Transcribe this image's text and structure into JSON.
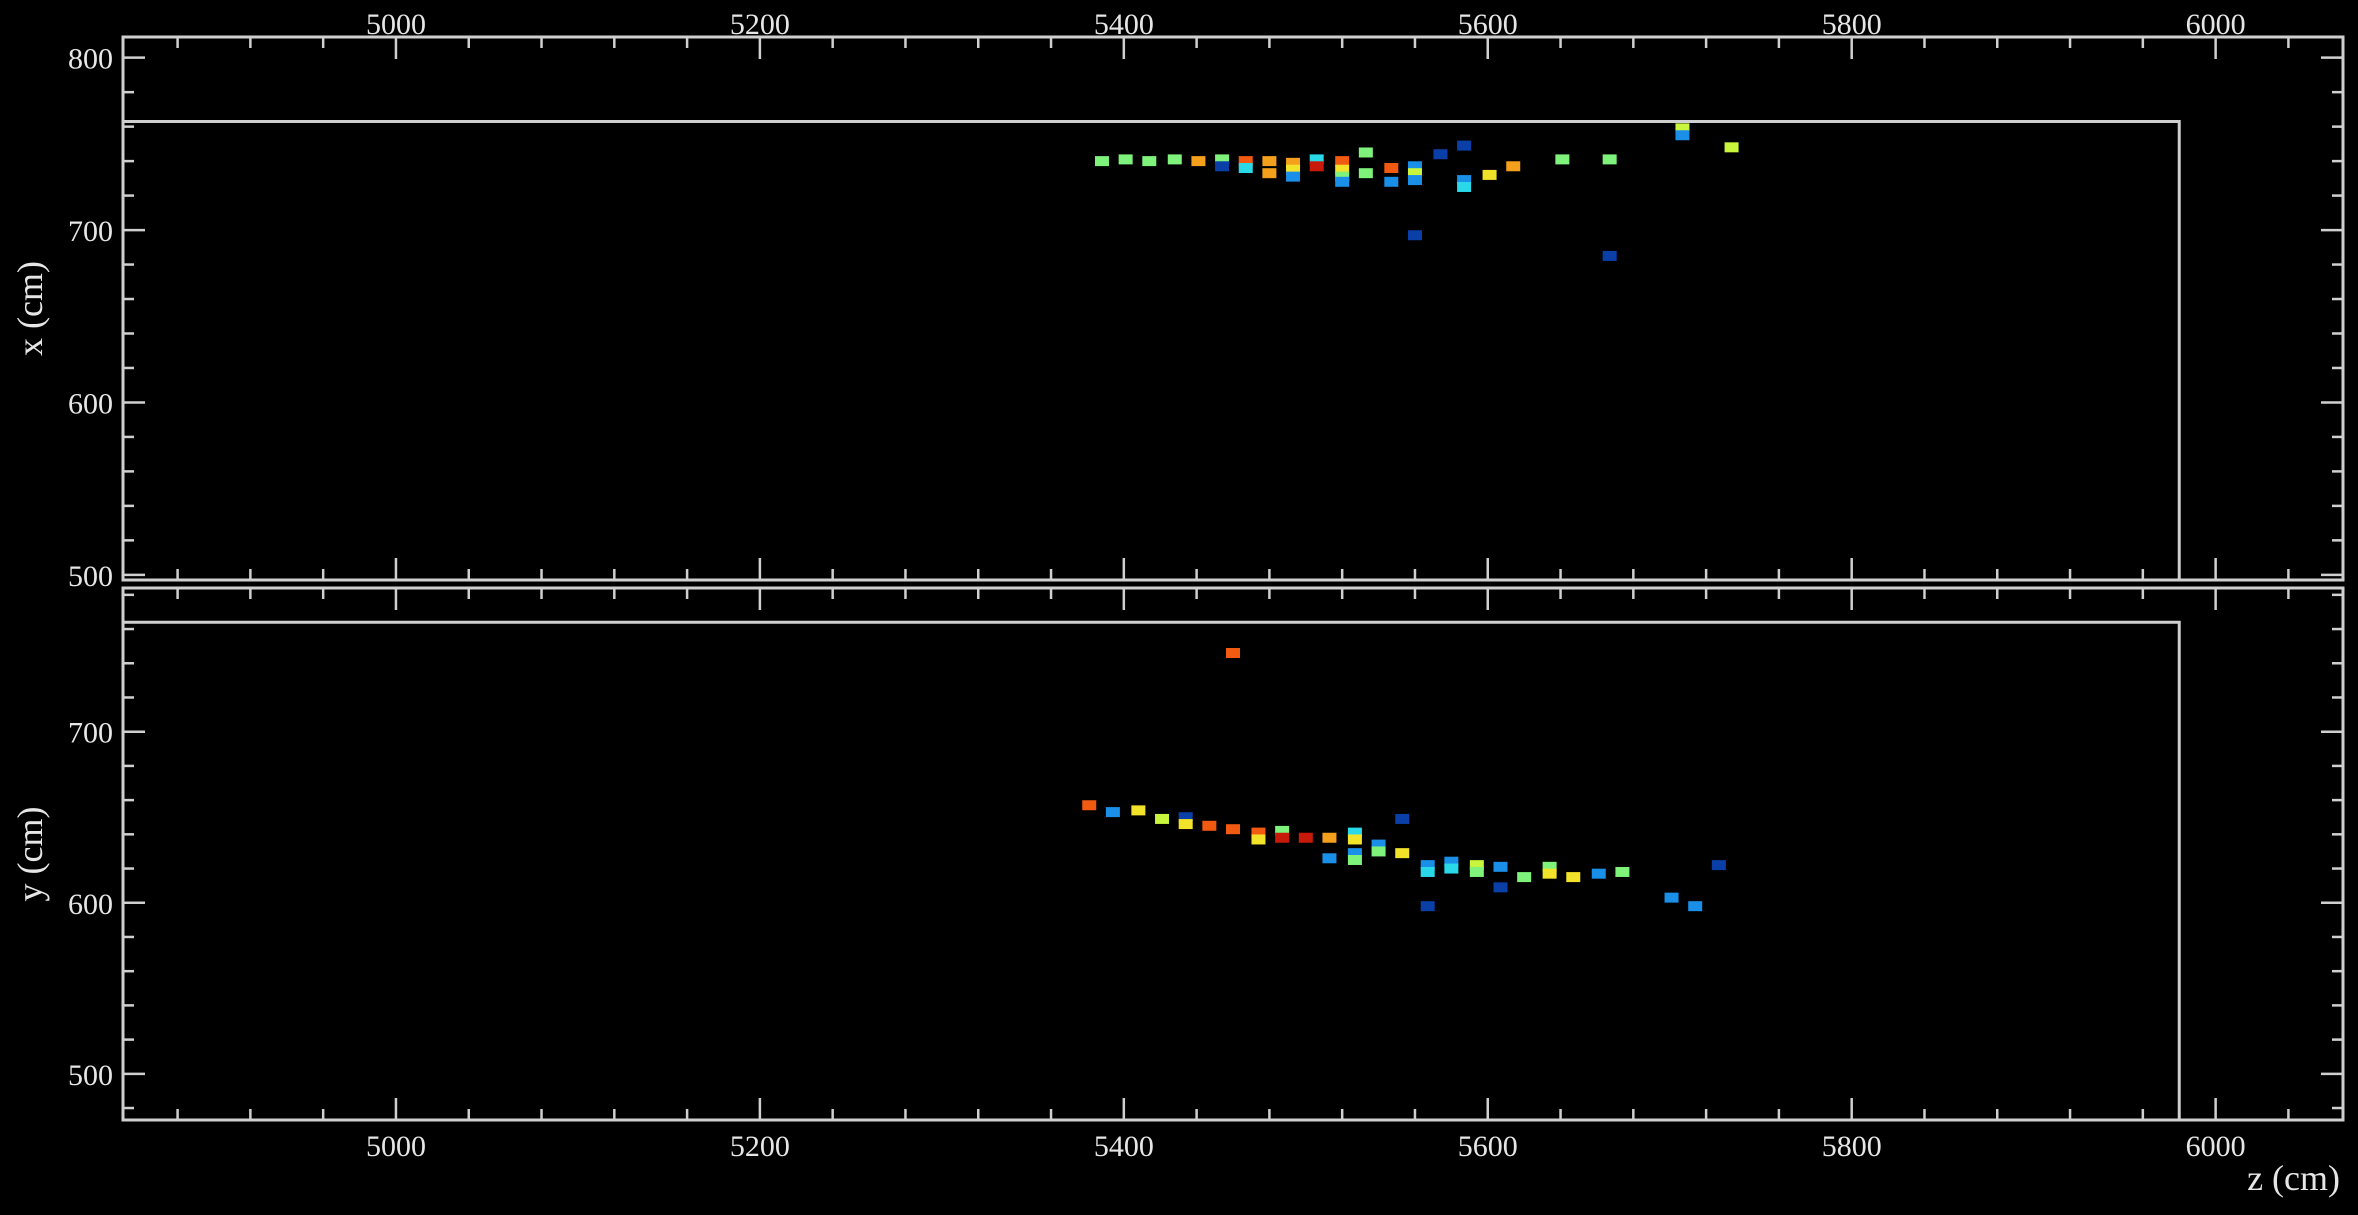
{
  "chart_data": [
    {
      "type": "scatter",
      "xlabel": "",
      "ylabel": "x (cm)",
      "xlim": [
        4850,
        6070
      ],
      "ylim": [
        497,
        812
      ],
      "x_ticks": [
        5000,
        5200,
        5400,
        5600,
        5800,
        6000
      ],
      "y_ticks": [
        500,
        600,
        700,
        800
      ],
      "x_tick_labels_position": "top",
      "grid": false,
      "detector_outline": {
        "z_max": 5980,
        "top": 763
      },
      "colors": {
        "1": "#0a3fa8",
        "2": "#1a8fe8",
        "3": "#2ad9e8",
        "4": "#7ef27a",
        "5": "#c9f53c",
        "6": "#f2e32a",
        "7": "#f5a01c",
        "8": "#f25a12",
        "9": "#c81a0a"
      },
      "points": [
        {
          "z": 5388,
          "v": 740,
          "c": 4
        },
        {
          "z": 5401,
          "v": 741,
          "c": 4
        },
        {
          "z": 5414,
          "v": 740,
          "c": 4
        },
        {
          "z": 5428,
          "v": 741,
          "c": 4
        },
        {
          "z": 5441,
          "v": 740,
          "c": 7
        },
        {
          "z": 5454,
          "v": 741,
          "c": 4
        },
        {
          "z": 5454,
          "v": 737,
          "c": 1
        },
        {
          "z": 5467,
          "v": 740,
          "c": 8
        },
        {
          "z": 5467,
          "v": 736,
          "c": 3
        },
        {
          "z": 5480,
          "v": 740,
          "c": 7
        },
        {
          "z": 5480,
          "v": 733,
          "c": 7
        },
        {
          "z": 5493,
          "v": 739,
          "c": 7
        },
        {
          "z": 5493,
          "v": 735,
          "c": 6
        },
        {
          "z": 5493,
          "v": 731,
          "c": 2
        },
        {
          "z": 5506,
          "v": 741,
          "c": 3
        },
        {
          "z": 5506,
          "v": 737,
          "c": 9
        },
        {
          "z": 5520,
          "v": 740,
          "c": 8
        },
        {
          "z": 5520,
          "v": 735,
          "c": 6
        },
        {
          "z": 5520,
          "v": 731,
          "c": 4
        },
        {
          "z": 5520,
          "v": 728,
          "c": 2
        },
        {
          "z": 5533,
          "v": 745,
          "c": 4
        },
        {
          "z": 5533,
          "v": 733,
          "c": 4
        },
        {
          "z": 5547,
          "v": 736,
          "c": 8
        },
        {
          "z": 5547,
          "v": 728,
          "c": 2
        },
        {
          "z": 5560,
          "v": 737,
          "c": 2
        },
        {
          "z": 5560,
          "v": 733,
          "c": 5
        },
        {
          "z": 5560,
          "v": 729,
          "c": 2
        },
        {
          "z": 5560,
          "v": 697,
          "c": 1
        },
        {
          "z": 5574,
          "v": 744,
          "c": 1
        },
        {
          "z": 5587,
          "v": 749,
          "c": 1
        },
        {
          "z": 5587,
          "v": 729,
          "c": 2
        },
        {
          "z": 5587,
          "v": 725,
          "c": 3
        },
        {
          "z": 5601,
          "v": 732,
          "c": 6
        },
        {
          "z": 5614,
          "v": 737,
          "c": 7
        },
        {
          "z": 5641,
          "v": 741,
          "c": 4
        },
        {
          "z": 5667,
          "v": 741,
          "c": 4
        },
        {
          "z": 5667,
          "v": 685,
          "c": 1
        },
        {
          "z": 5707,
          "v": 759,
          "c": 5
        },
        {
          "z": 5707,
          "v": 755,
          "c": 2
        },
        {
          "z": 5734,
          "v": 748,
          "c": 5
        }
      ]
    },
    {
      "type": "scatter",
      "xlabel": "z (cm)",
      "ylabel": "y (cm)",
      "xlim": [
        4850,
        6070
      ],
      "ylim": [
        473,
        784
      ],
      "x_ticks": [
        5000,
        5200,
        5400,
        5600,
        5800,
        6000
      ],
      "y_ticks": [
        500,
        600,
        700
      ],
      "x_tick_labels_position": "bottom",
      "grid": false,
      "detector_outline": {
        "z_max": 5980,
        "top": 764
      },
      "colors": {
        "1": "#0a3fa8",
        "2": "#1a8fe8",
        "3": "#2ad9e8",
        "4": "#7ef27a",
        "5": "#c9f53c",
        "6": "#f2e32a",
        "7": "#f5a01c",
        "8": "#f25a12",
        "9": "#c81a0a"
      },
      "points": [
        {
          "z": 5381,
          "v": 657,
          "c": 8
        },
        {
          "z": 5394,
          "v": 653,
          "c": 2
        },
        {
          "z": 5408,
          "v": 654,
          "c": 6
        },
        {
          "z": 5421,
          "v": 649,
          "c": 5
        },
        {
          "z": 5434,
          "v": 650,
          "c": 1
        },
        {
          "z": 5434,
          "v": 646,
          "c": 6
        },
        {
          "z": 5447,
          "v": 645,
          "c": 8
        },
        {
          "z": 5460,
          "v": 643,
          "c": 8
        },
        {
          "z": 5460,
          "v": 746,
          "c": 8
        },
        {
          "z": 5474,
          "v": 641,
          "c": 8
        },
        {
          "z": 5474,
          "v": 637,
          "c": 6
        },
        {
          "z": 5487,
          "v": 642,
          "c": 4
        },
        {
          "z": 5487,
          "v": 638,
          "c": 9
        },
        {
          "z": 5500,
          "v": 638,
          "c": 9
        },
        {
          "z": 5513,
          "v": 638,
          "c": 7
        },
        {
          "z": 5513,
          "v": 626,
          "c": 2
        },
        {
          "z": 5527,
          "v": 641,
          "c": 3
        },
        {
          "z": 5527,
          "v": 637,
          "c": 6
        },
        {
          "z": 5527,
          "v": 629,
          "c": 2
        },
        {
          "z": 5527,
          "v": 625,
          "c": 4
        },
        {
          "z": 5540,
          "v": 634,
          "c": 2
        },
        {
          "z": 5540,
          "v": 630,
          "c": 4
        },
        {
          "z": 5553,
          "v": 649,
          "c": 1
        },
        {
          "z": 5553,
          "v": 629,
          "c": 6
        },
        {
          "z": 5567,
          "v": 622,
          "c": 2
        },
        {
          "z": 5567,
          "v": 618,
          "c": 3
        },
        {
          "z": 5567,
          "v": 598,
          "c": 1
        },
        {
          "z": 5580,
          "v": 624,
          "c": 2
        },
        {
          "z": 5580,
          "v": 620,
          "c": 3
        },
        {
          "z": 5594,
          "v": 622,
          "c": 5
        },
        {
          "z": 5594,
          "v": 618,
          "c": 4
        },
        {
          "z": 5607,
          "v": 621,
          "c": 2
        },
        {
          "z": 5607,
          "v": 609,
          "c": 1
        },
        {
          "z": 5620,
          "v": 615,
          "c": 4
        },
        {
          "z": 5634,
          "v": 621,
          "c": 4
        },
        {
          "z": 5634,
          "v": 617,
          "c": 6
        },
        {
          "z": 5647,
          "v": 615,
          "c": 6
        },
        {
          "z": 5661,
          "v": 617,
          "c": 2
        },
        {
          "z": 5674,
          "v": 618,
          "c": 4
        },
        {
          "z": 5701,
          "v": 603,
          "c": 2
        },
        {
          "z": 5714,
          "v": 598,
          "c": 2
        },
        {
          "z": 5727,
          "v": 622,
          "c": 1
        }
      ]
    }
  ]
}
